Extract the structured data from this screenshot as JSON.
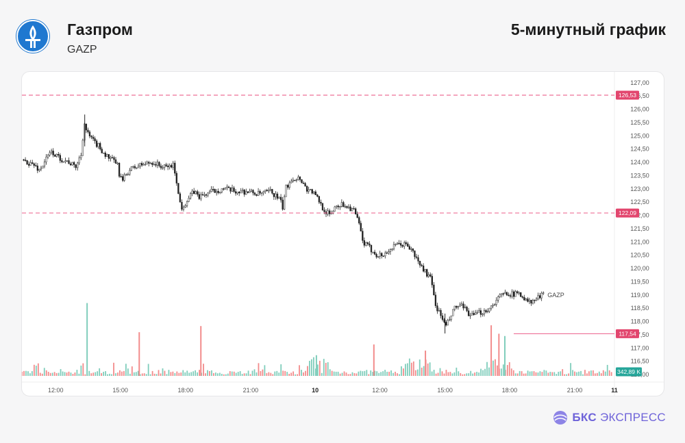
{
  "header": {
    "company": "Газпром",
    "ticker": "GAZP",
    "chart_type_label": "5-минутный график",
    "logo_icon": "gazprom-flame-icon"
  },
  "footer": {
    "brand_bold": "БКС",
    "brand_light": "ЭКСПРЕСС",
    "brand_icon": "bcs-sphere-icon"
  },
  "colors": {
    "up_volume": "#7fcdbb",
    "down_volume": "#f28b8b",
    "candle": "#222222",
    "level_line": "#ee6f97",
    "level_badge": "#e2466e",
    "volume_badge": "#26a69a",
    "logo_blue": "#1f78d0",
    "brand": "#6e63d9"
  },
  "chart_data": {
    "type": "candlestick",
    "interval": "5 min",
    "series_label": "GAZP",
    "y_range": [
      115.9,
      127.2
    ],
    "y_ticks": [
      "127,00",
      "126,50",
      "126,00",
      "125,50",
      "125,00",
      "124,50",
      "124,00",
      "123,50",
      "123,00",
      "122,50",
      "122,00",
      "121,50",
      "121,00",
      "120,50",
      "120,00",
      "119,50",
      "119,00",
      "118,50",
      "118,00",
      "117,50",
      "117,00",
      "116,50",
      "116,00"
    ],
    "y_tick_values": [
      127.0,
      126.5,
      126.0,
      125.5,
      125.0,
      124.5,
      124.0,
      123.5,
      123.0,
      122.5,
      122.0,
      121.5,
      121.0,
      120.5,
      120.0,
      119.5,
      119.0,
      118.5,
      118.0,
      117.5,
      117.0,
      116.5,
      116.0
    ],
    "x_ticks": [
      "12:00",
      "15:00",
      "18:00",
      "21:00",
      "10",
      "12:00",
      "15:00",
      "18:00",
      "21:00",
      "11"
    ],
    "x_tick_pos": [
      0.057,
      0.166,
      0.276,
      0.386,
      0.495,
      0.604,
      0.714,
      0.823,
      0.933,
      1.0
    ],
    "levels": [
      {
        "value": 126.53,
        "label": "126,53",
        "style": "dashed"
      },
      {
        "value": 122.09,
        "label": "122,09",
        "style": "dashed"
      },
      {
        "value": 117.54,
        "label": "117,54",
        "style": "solid",
        "from_x": 0.83
      }
    ],
    "volume_label": "342,89 K",
    "price_path": [
      [
        0.0,
        124.1
      ],
      [
        0.02,
        123.9
      ],
      [
        0.03,
        123.7
      ],
      [
        0.04,
        124.1
      ],
      [
        0.05,
        124.4
      ],
      [
        0.06,
        124.2
      ],
      [
        0.07,
        124.1
      ],
      [
        0.08,
        124.0
      ],
      [
        0.09,
        123.8
      ],
      [
        0.1,
        124.3
      ],
      [
        0.105,
        125.5
      ],
      [
        0.11,
        125.1
      ],
      [
        0.12,
        124.8
      ],
      [
        0.13,
        124.6
      ],
      [
        0.14,
        124.3
      ],
      [
        0.15,
        124.1
      ],
      [
        0.16,
        124.0
      ],
      [
        0.165,
        123.5
      ],
      [
        0.17,
        123.3
      ],
      [
        0.18,
        123.7
      ],
      [
        0.2,
        123.9
      ],
      [
        0.22,
        124.0
      ],
      [
        0.24,
        123.8
      ],
      [
        0.255,
        123.9
      ],
      [
        0.26,
        123.5
      ],
      [
        0.265,
        122.6
      ],
      [
        0.27,
        122.3
      ],
      [
        0.28,
        122.6
      ],
      [
        0.29,
        122.9
      ],
      [
        0.3,
        122.7
      ],
      [
        0.32,
        122.9
      ],
      [
        0.34,
        123.0
      ],
      [
        0.36,
        122.9
      ],
      [
        0.38,
        122.9
      ],
      [
        0.4,
        122.8
      ],
      [
        0.42,
        122.9
      ],
      [
        0.435,
        122.6
      ],
      [
        0.44,
        122.3
      ],
      [
        0.445,
        123.0
      ],
      [
        0.455,
        123.4
      ],
      [
        0.47,
        123.4
      ],
      [
        0.48,
        123.0
      ],
      [
        0.49,
        122.9
      ],
      [
        0.5,
        122.6
      ],
      [
        0.51,
        122.2
      ],
      [
        0.52,
        122.0
      ],
      [
        0.53,
        122.4
      ],
      [
        0.545,
        122.4
      ],
      [
        0.56,
        122.2
      ],
      [
        0.57,
        121.6
      ],
      [
        0.575,
        121.0
      ],
      [
        0.585,
        120.8
      ],
      [
        0.6,
        120.5
      ],
      [
        0.61,
        120.5
      ],
      [
        0.62,
        120.7
      ],
      [
        0.635,
        120.9
      ],
      [
        0.65,
        120.9
      ],
      [
        0.66,
        120.6
      ],
      [
        0.67,
        120.2
      ],
      [
        0.68,
        119.9
      ],
      [
        0.69,
        119.6
      ],
      [
        0.695,
        119.0
      ],
      [
        0.7,
        118.5
      ],
      [
        0.71,
        118.1
      ],
      [
        0.715,
        117.8
      ],
      [
        0.72,
        118.0
      ],
      [
        0.73,
        118.5
      ],
      [
        0.74,
        118.6
      ],
      [
        0.75,
        118.4
      ],
      [
        0.76,
        118.2
      ],
      [
        0.77,
        118.3
      ],
      [
        0.79,
        118.5
      ],
      [
        0.8,
        118.8
      ],
      [
        0.81,
        119.0
      ],
      [
        0.82,
        119.1
      ],
      [
        0.83,
        119.0
      ],
      [
        0.84,
        119.1
      ],
      [
        0.85,
        118.8
      ],
      [
        0.86,
        118.7
      ],
      [
        0.87,
        118.9
      ],
      [
        0.88,
        119.0
      ]
    ],
    "volume_spikes": [
      {
        "x": 0.11,
        "h": 0.95,
        "up": true
      },
      {
        "x": 0.198,
        "h": 0.57,
        "up": false
      },
      {
        "x": 0.302,
        "h": 0.65,
        "up": false
      },
      {
        "x": 0.497,
        "h": 0.27,
        "up": true
      },
      {
        "x": 0.594,
        "h": 0.41,
        "up": false
      },
      {
        "x": 0.681,
        "h": 0.33,
        "up": false
      },
      {
        "x": 0.792,
        "h": 0.66,
        "up": false
      },
      {
        "x": 0.805,
        "h": 0.55,
        "up": false
      },
      {
        "x": 0.815,
        "h": 0.52,
        "up": true
      }
    ]
  }
}
